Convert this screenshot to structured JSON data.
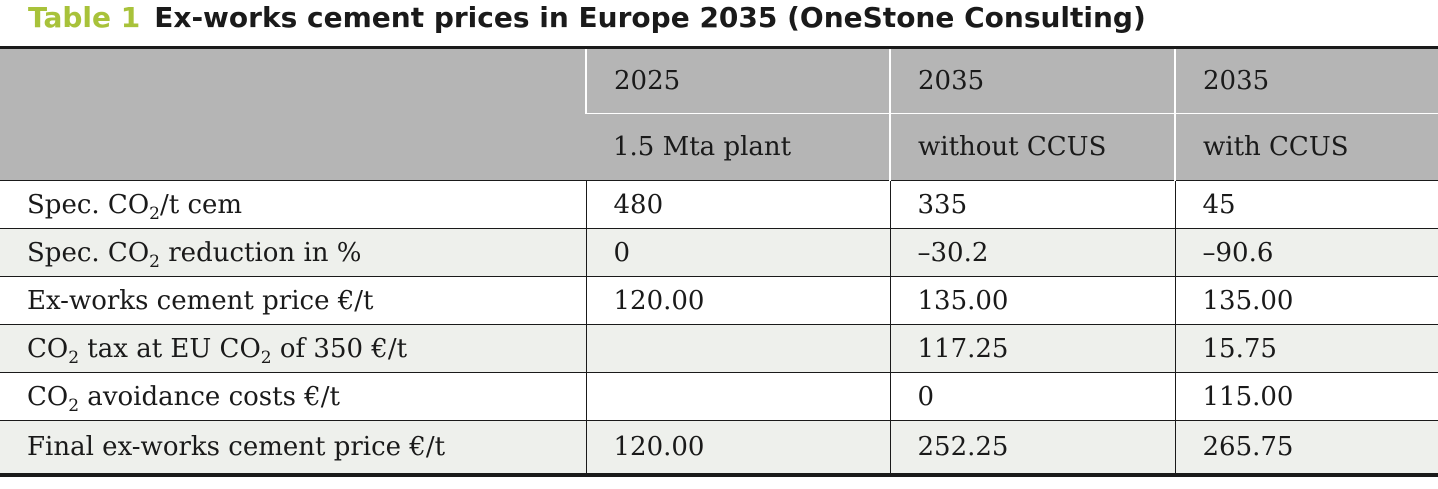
{
  "caption": {
    "number": "Table 1",
    "title": "Ex-works cement prices in Europe 2035 (OneStone Consulting)"
  },
  "table": {
    "header_years": [
      "2025",
      "2035",
      "2035"
    ],
    "header_scenarios": [
      "1.5 Mta plant",
      "without CCUS",
      "with CCUS"
    ],
    "rows": [
      {
        "label_pre": "Spec. CO",
        "label_sub": "2",
        "label_post": "/t cem",
        "values": [
          "480",
          "335",
          "45"
        ]
      },
      {
        "label_pre": "Spec. CO",
        "label_sub": "2",
        "label_post": " reduction in %",
        "values": [
          "0",
          "–30.2",
          "–90.6"
        ]
      },
      {
        "label_pre": "Ex-works cement price €/t",
        "label_sub": "",
        "label_post": "",
        "values": [
          "120.00",
          "135.00",
          "135.00"
        ]
      },
      {
        "label_pre": "CO",
        "label_sub": "2",
        "label_post": " tax at EU CO",
        "label_sub2": "2",
        "label_post2": " of 350 €/t",
        "values": [
          "",
          "117.25",
          "15.75"
        ]
      },
      {
        "label_pre": "CO",
        "label_sub": "2",
        "label_post": " avoidance costs €/t",
        "values": [
          "",
          "0",
          "115.00"
        ]
      },
      {
        "label_pre": "Final ex-works cement price €/t",
        "label_sub": "",
        "label_post": "",
        "values": [
          "120.00",
          "252.25",
          "265.75"
        ]
      }
    ]
  }
}
